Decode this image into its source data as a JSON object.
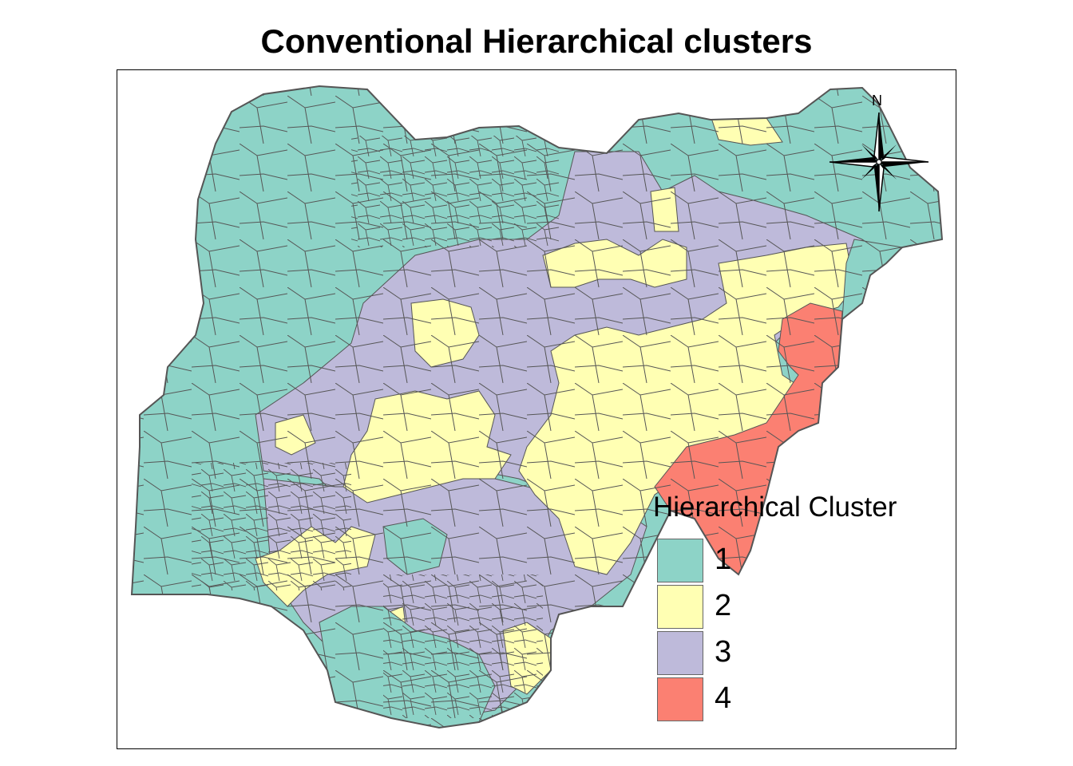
{
  "title": "Conventional Hierarchical clusters",
  "north_label": "N",
  "legend": {
    "title": "Hierarchical Cluster",
    "items": [
      {
        "label": "1",
        "color": "#8DD3C7"
      },
      {
        "label": "2",
        "color": "#FFFFB3"
      },
      {
        "label": "3",
        "color": "#BEBADA"
      },
      {
        "label": "4",
        "color": "#FB8072"
      }
    ]
  },
  "border_color": "#555555",
  "icons": [
    "north-arrow-compass-icon"
  ]
}
